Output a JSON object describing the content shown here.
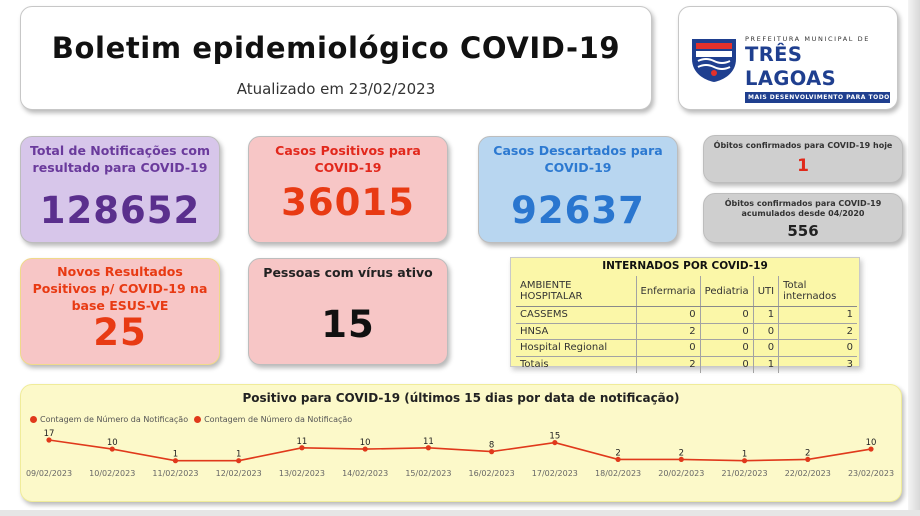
{
  "header": {
    "title": "Boletim epidemiológico COVID-19",
    "updated": "Atualizado em 23/02/2023"
  },
  "logo": {
    "top_line": "PREFEITURA MUNICIPAL DE",
    "name": "TRÊS LAGOAS",
    "slogan": "MAIS DESENVOLVIMENTO PARA TODOS"
  },
  "kpis": {
    "total_notificacoes": {
      "label": "Total de Notificações com resultado para COVID-19",
      "value": "128652"
    },
    "casos_positivos": {
      "label": "Casos Positivos para COVID-19",
      "value": "36015"
    },
    "casos_descartados": {
      "label": "Casos Descartados para COVID-19",
      "value": "92637"
    },
    "novos_positivos": {
      "label": "Novos Resultados Positivos p/ COVID-19 na base ESUS-VE",
      "value": "25"
    },
    "virus_ativo": {
      "label": "Pessoas com vírus ativo",
      "value": "15"
    },
    "obitos_hoje": {
      "label": "Óbitos confirmados para COVID-19 hoje",
      "value": "1"
    },
    "obitos_acumulados": {
      "label": "Óbitos confirmados para COVID-19 acumulados desde 04/2020",
      "value": "556"
    }
  },
  "internados": {
    "title": "INTERNADOS POR COVID-19",
    "headers": [
      "AMBIENTE HOSPITALAR",
      "Enfermaria",
      "Pediatria",
      "UTI",
      "Total internados"
    ],
    "rows": [
      [
        "CASSEMS",
        "0",
        "0",
        "1",
        "1"
      ],
      [
        "HNSA",
        "2",
        "0",
        "0",
        "2"
      ],
      [
        "Hospital Regional",
        "0",
        "0",
        "0",
        "0"
      ],
      [
        "Totais",
        "2",
        "0",
        "1",
        "3"
      ]
    ]
  },
  "chart_data": {
    "type": "line",
    "title": "Positivo para COVID-19 (últimos 15 dias por data de notificação)",
    "legend": [
      "Contagem de Número da Notificação",
      "Contagem de Número da Notificação"
    ],
    "legend_position": "top-left",
    "categories": [
      "09/02/2023",
      "10/02/2023",
      "11/02/2023",
      "12/02/2023",
      "13/02/2023",
      "14/02/2023",
      "15/02/2023",
      "16/02/2023",
      "17/02/2023",
      "18/02/2023",
      "20/02/2023",
      "21/02/2023",
      "22/02/2023",
      "23/02/2023"
    ],
    "series": [
      {
        "name": "Contagem de Número da Notificação",
        "values": [
          17,
          10,
          1,
          1,
          11,
          10,
          11,
          8,
          15,
          2,
          2,
          1,
          2,
          10
        ]
      }
    ],
    "color": "#e0391b",
    "grid": false
  }
}
